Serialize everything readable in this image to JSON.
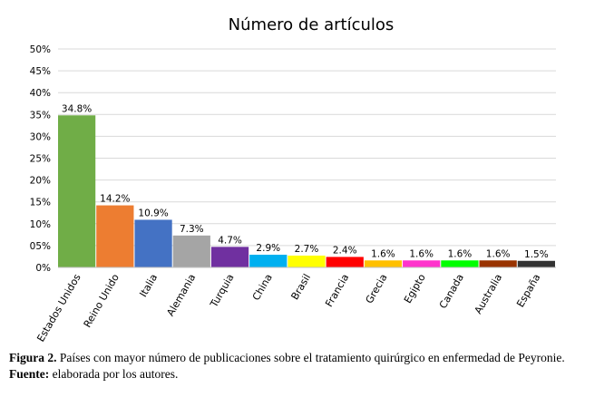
{
  "chart_data": {
    "type": "bar",
    "title": "Número de artículos",
    "categories": [
      "Estados Unidos",
      "Reino Unido",
      "Italia",
      "Alemania",
      "Turquia",
      "China",
      "Brasil",
      "Francia",
      "Grecia",
      "Egipto",
      "Canada",
      "Australia",
      "España"
    ],
    "values": [
      34.8,
      14.2,
      10.9,
      7.3,
      4.7,
      2.9,
      2.7,
      2.4,
      1.6,
      1.6,
      1.6,
      1.6,
      1.5
    ],
    "data_labels": [
      "34.8%",
      "14.2%",
      "10.9%",
      "7.3%",
      "4.7%",
      "2.9%",
      "2.7%",
      "2.4%",
      "1.6%",
      "1.6%",
      "1.6%",
      "1.6%",
      "1.5%"
    ],
    "colors": [
      "#70AD47",
      "#ED7D31",
      "#4472C4",
      "#A5A5A5",
      "#7030A0",
      "#00B0F0",
      "#FFFF00",
      "#FF0000",
      "#FFC000",
      "#FF33CC",
      "#00FF00",
      "#993300",
      "#333333"
    ],
    "ylim": [
      0,
      50
    ],
    "yticks": [
      "0%",
      "05%",
      "10%",
      "15%",
      "20%",
      "25%",
      "30%",
      "35%",
      "40%",
      "45%",
      "50%"
    ],
    "grid": true,
    "legend": "none"
  },
  "caption": {
    "figure_label": "Figura 2.",
    "figure_text": " Países con mayor número de publicaciones sobre el tratamiento quirúrgico en enfermedad de Peyronie.",
    "source_label": "Fuente:",
    "source_text": " elaborada por los autores."
  }
}
